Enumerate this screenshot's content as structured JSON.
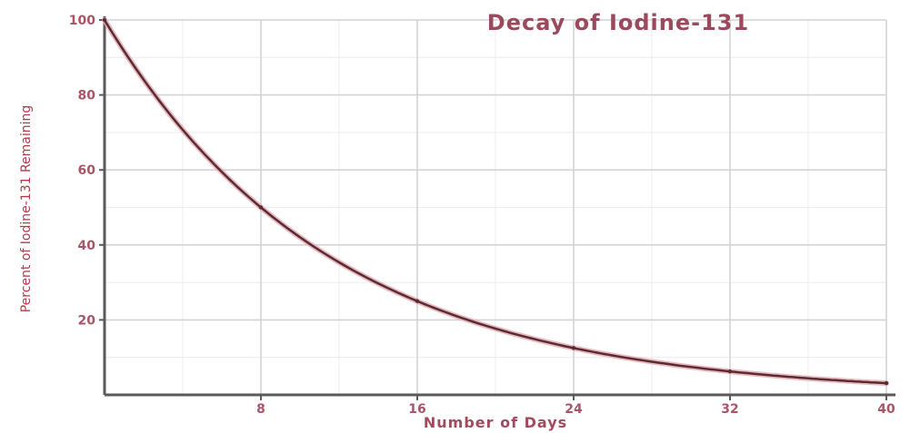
{
  "chart_data": {
    "type": "line",
    "title": "Decay of Iodine-131",
    "xlabel": "Number of Days",
    "ylabel": "Percent of Iodine-131 Remaining",
    "xlim": [
      0,
      40
    ],
    "ylim": [
      0,
      100
    ],
    "x_ticks": [
      8,
      16,
      24,
      32,
      40
    ],
    "x_tick_labels": [
      "8",
      "16",
      "24",
      "32",
      "40"
    ],
    "y_ticks": [
      20,
      40,
      60,
      80,
      100
    ],
    "y_tick_labels": [
      "20",
      "40",
      "60",
      "80",
      "100"
    ],
    "grid": true,
    "legend": "none",
    "series": [
      {
        "x": [
          0,
          8,
          16,
          24,
          32,
          40
        ],
        "values": [
          100,
          50,
          25,
          12.5,
          6.25,
          3.125
        ],
        "color": "#5a2b33"
      }
    ]
  }
}
